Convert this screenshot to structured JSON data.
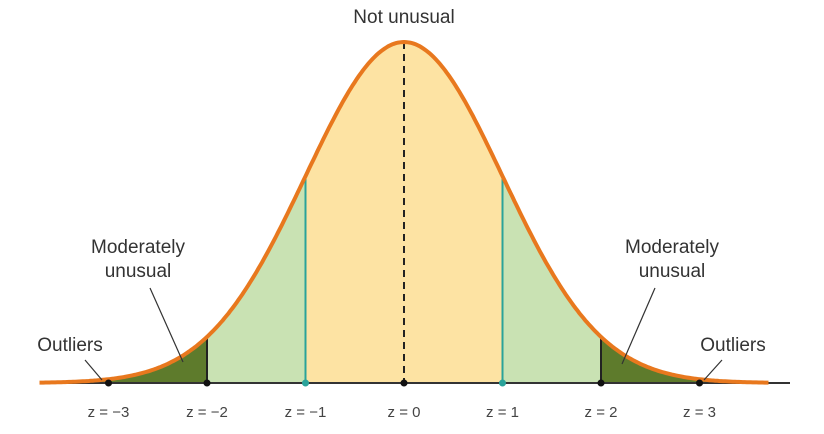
{
  "center_label": "Not unusual",
  "left": {
    "moderate": [
      "Moderately",
      "unusual"
    ],
    "outliers": "Outliers"
  },
  "right": {
    "moderate": [
      "Moderately",
      "unusual"
    ],
    "outliers": "Outliers"
  },
  "axis_ticks": [
    "z = −3",
    "z = −2",
    "z = −1",
    "z = 0",
    "z = 1",
    "z = 2",
    "z = 3"
  ]
}
